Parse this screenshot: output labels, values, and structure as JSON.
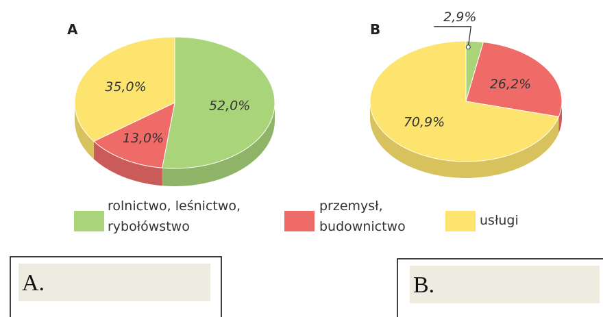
{
  "chart_data": [
    {
      "type": "pie",
      "title": "A",
      "values": [
        52.0,
        13.0,
        35.0
      ],
      "value_labels": [
        "52,0%",
        "13,0%",
        "35,0%"
      ]
    },
    {
      "type": "pie",
      "title": "B",
      "values": [
        2.9,
        26.2,
        70.9
      ],
      "value_labels": [
        "2,9%",
        "26,2%",
        "70,9%"
      ]
    }
  ],
  "legend": {
    "labels": [
      [
        "rolnictwo, leśnictwo,",
        "rybołówstwo"
      ],
      [
        "przemysł,",
        "budownictwo"
      ],
      [
        "usługi"
      ]
    ],
    "colors": [
      "#a9d479",
      "#ef6b68",
      "#fde46e"
    ]
  },
  "answer_boxes": [
    {
      "label": "A."
    },
    {
      "label": "B."
    }
  ]
}
